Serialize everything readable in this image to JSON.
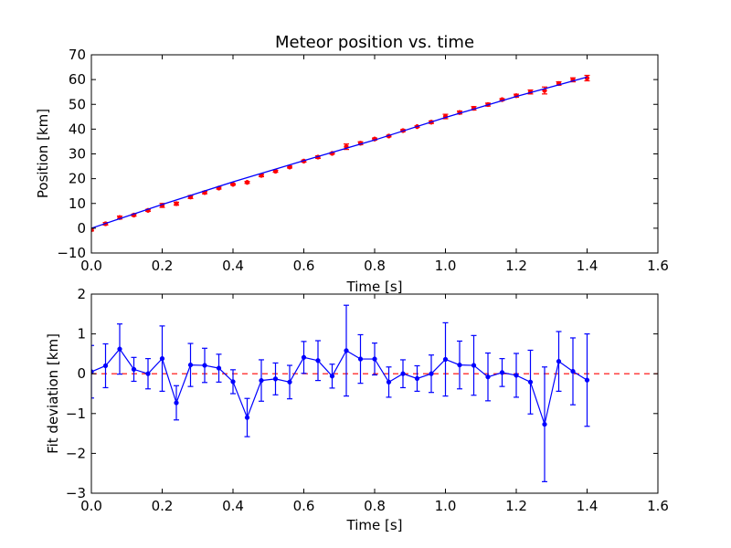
{
  "colors": {
    "data_points": "#ff0000",
    "fit_line": "#0000ff",
    "residuals": "#0000ff",
    "zero_line": "#ff0000"
  },
  "chart_data": [
    {
      "type": "scatter",
      "title": "Meteor position vs. time",
      "xlabel": "Time [s]",
      "ylabel": "Position [km]",
      "xlim": [
        0.0,
        1.6
      ],
      "ylim": [
        -10,
        70
      ],
      "xticks": [
        "0.0",
        "0.2",
        "0.4",
        "0.6",
        "0.8",
        "1.0",
        "1.2",
        "1.4",
        "1.6"
      ],
      "yticks": [
        "−10",
        "0",
        "10",
        "20",
        "30",
        "40",
        "50",
        "60",
        "70"
      ],
      "grid": false,
      "legend": false,
      "series": [
        {
          "kind": "errorbar-points",
          "x": [
            0.0,
            0.04,
            0.08,
            0.12,
            0.16,
            0.2,
            0.24,
            0.28,
            0.32,
            0.36,
            0.4,
            0.44,
            0.48,
            0.52,
            0.56,
            0.6,
            0.64,
            0.68,
            0.72,
            0.76,
            0.8,
            0.84,
            0.88,
            0.92,
            0.96,
            1.0,
            1.04,
            1.08,
            1.12,
            1.16,
            1.2,
            1.24,
            1.28,
            1.32,
            1.36,
            1.4
          ],
          "y": [
            -0.6,
            1.8,
            4.3,
            5.3,
            7.2,
            9.2,
            9.9,
            12.6,
            14.4,
            16.2,
            17.7,
            18.5,
            21.3,
            23.0,
            24.7,
            27.1,
            28.7,
            30.2,
            32.9,
            34.3,
            36.0,
            37.2,
            39.4,
            41.0,
            42.8,
            45.1,
            46.7,
            48.4,
            49.9,
            51.9,
            53.5,
            55.0,
            55.6,
            58.4,
            59.9,
            60.6
          ],
          "yerr": [
            0.5,
            0.5,
            0.6,
            0.4,
            0.4,
            0.8,
            0.6,
            0.6,
            0.5,
            0.4,
            0.3,
            0.4,
            0.5,
            0.4,
            0.4,
            0.4,
            0.5,
            0.3,
            1.1,
            0.6,
            0.4,
            0.3,
            0.4,
            0.3,
            0.5,
            0.9,
            0.6,
            0.7,
            0.6,
            0.4,
            0.6,
            0.8,
            1.4,
            0.7,
            0.8,
            1.1
          ]
        },
        {
          "kind": "line",
          "x": [
            0.0,
            0.2,
            0.4,
            0.6,
            0.8,
            1.0,
            1.2,
            1.4
          ],
          "y": [
            0.0,
            9.6,
            18.7,
            27.3,
            35.6,
            44.7,
            53.2,
            61.0
          ]
        }
      ]
    },
    {
      "type": "line",
      "xlabel": "Time [s]",
      "ylabel": "Fit deviation [km]",
      "xlim": [
        0.0,
        1.6
      ],
      "ylim": [
        -3,
        2
      ],
      "xticks": [
        "0.0",
        "0.2",
        "0.4",
        "0.6",
        "0.8",
        "1.0",
        "1.2",
        "1.4",
        "1.6"
      ],
      "yticks": [
        "−3",
        "−2",
        "−1",
        "0",
        "1",
        "2"
      ],
      "grid": false,
      "legend": false,
      "reference_line_y": 0,
      "series": [
        {
          "kind": "errorbar-line",
          "x": [
            0.0,
            0.04,
            0.08,
            0.12,
            0.16,
            0.2,
            0.24,
            0.28,
            0.32,
            0.36,
            0.4,
            0.44,
            0.48,
            0.52,
            0.56,
            0.6,
            0.64,
            0.68,
            0.72,
            0.76,
            0.8,
            0.84,
            0.88,
            0.92,
            0.96,
            1.0,
            1.04,
            1.08,
            1.12,
            1.16,
            1.2,
            1.24,
            1.28,
            1.32,
            1.36,
            1.4
          ],
          "y": [
            0.05,
            0.2,
            0.62,
            0.11,
            0.0,
            0.38,
            -0.73,
            0.22,
            0.21,
            0.14,
            -0.2,
            -1.1,
            -0.17,
            -0.13,
            -0.21,
            0.41,
            0.33,
            -0.06,
            0.58,
            0.37,
            0.37,
            -0.21,
            0.0,
            -0.12,
            0.0,
            0.36,
            0.22,
            0.21,
            -0.08,
            0.03,
            -0.04,
            -0.21,
            -1.27,
            0.31,
            0.06,
            -0.16
          ],
          "yerr": [
            0.66,
            0.55,
            0.63,
            0.3,
            0.38,
            0.82,
            0.43,
            0.54,
            0.43,
            0.35,
            0.3,
            0.48,
            0.52,
            0.4,
            0.42,
            0.4,
            0.5,
            0.3,
            1.14,
            0.61,
            0.4,
            0.38,
            0.35,
            0.32,
            0.47,
            0.92,
            0.6,
            0.75,
            0.6,
            0.35,
            0.55,
            0.8,
            1.44,
            0.75,
            0.84,
            1.16
          ]
        }
      ]
    }
  ]
}
